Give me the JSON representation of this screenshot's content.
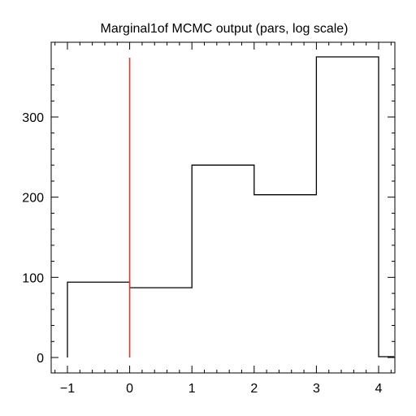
{
  "chart_data": {
    "type": "histogram",
    "title": "Marginal1of MCMC output (pars, log scale)",
    "xlabel": "",
    "ylabel": "",
    "xlim": [
      -1.3,
      4.25
    ],
    "ylim": [
      -20,
      375
    ],
    "xticks": [
      -1,
      0,
      1,
      2,
      3,
      4
    ],
    "xtick_labels": [
      "−1",
      "0",
      "1",
      "2",
      "3",
      "4"
    ],
    "yticks": [
      0,
      100,
      200,
      300
    ],
    "ytick_labels": [
      "0",
      "100",
      "200",
      "300"
    ],
    "bins": [
      {
        "x0": -1,
        "x1": 0,
        "count": 94
      },
      {
        "x0": 0,
        "x1": 1,
        "count": 87
      },
      {
        "x0": 1,
        "x1": 2,
        "count": 240
      },
      {
        "x0": 2,
        "x1": 3,
        "count": 203
      },
      {
        "x0": 3,
        "x1": 4,
        "count": 375
      },
      {
        "x0": 4,
        "x1": 4.25,
        "count": 1
      }
    ],
    "reference_line": {
      "x": 0,
      "y0": 0,
      "y1": 375,
      "color": "#e8372c"
    },
    "grid": false,
    "line_color": "#000000"
  }
}
